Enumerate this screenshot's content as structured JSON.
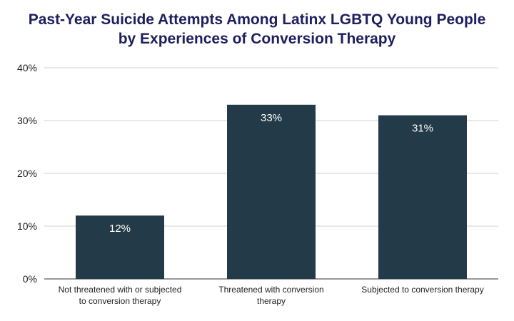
{
  "chart_data": {
    "type": "bar",
    "title_lines": [
      "Past-Year Suicide Attempts Among Latinx LGBTQ Young People",
      "by Experiences of Conversion Therapy"
    ],
    "categories": [
      [
        "Not threatened with or subjected",
        "to conversion therapy"
      ],
      [
        "Threatened with conversion",
        "therapy"
      ],
      [
        "Subjected to conversion therapy"
      ]
    ],
    "values": [
      12,
      33,
      31
    ],
    "data_labels": [
      "12%",
      "33%",
      "31%"
    ],
    "yticks": [
      0,
      10,
      20,
      30,
      40
    ],
    "ytick_labels": [
      "0%",
      "10%",
      "20%",
      "30%",
      "40%"
    ],
    "ylim": [
      0,
      40
    ],
    "grid": true,
    "bar_color": "#233a48",
    "grid_color": "#d0d0d0",
    "title_color": "#1e1f5e"
  }
}
